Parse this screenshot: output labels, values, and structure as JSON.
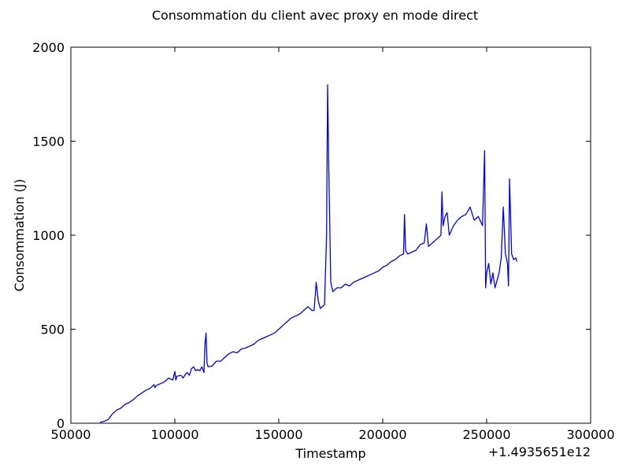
{
  "chart_data": {
    "type": "line",
    "title": "Consommation du client avec proxy en mode direct",
    "xlabel": "Timestamp",
    "ylabel": "Consommation (J)",
    "x_offset_label": "+1.4935651e12",
    "xlim": [
      50000,
      300000
    ],
    "ylim": [
      0,
      2000
    ],
    "x_ticks": [
      50000,
      100000,
      150000,
      200000,
      250000,
      300000
    ],
    "x_tick_labels": [
      "50000",
      "100000",
      "150000",
      "200000",
      "250000",
      "300000"
    ],
    "y_ticks": [
      0,
      500,
      1000,
      1500,
      2000
    ],
    "y_tick_labels": [
      "0",
      "500",
      "1000",
      "1500",
      "2000"
    ],
    "grid": false,
    "line_color": "#0000ff",
    "series": [
      {
        "x": [
          64000,
          66000,
          68000,
          70000,
          72000,
          74000,
          76000,
          78000,
          80000,
          82000,
          84000,
          86000,
          88000,
          90000,
          90500,
          91000,
          93000,
          95000,
          97000,
          99000,
          100000,
          100500,
          101000,
          103000,
          104000,
          105000,
          106000,
          107000,
          108000,
          109000,
          110000,
          111000,
          112000,
          113000,
          114000,
          114500,
          115000,
          115500,
          116000,
          118000,
          120000,
          122000,
          124000,
          126000,
          128000,
          130000,
          132000,
          134000,
          136000,
          138000,
          140000,
          142000,
          144000,
          146000,
          148000,
          150000,
          152000,
          154000,
          156000,
          158000,
          160000,
          162000,
          164000,
          166000,
          167000,
          168000,
          169000,
          170000,
          171000,
          172000,
          173000,
          173500,
          174000,
          175000,
          176000,
          178000,
          180000,
          182000,
          184000,
          186000,
          188000,
          190000,
          192000,
          194000,
          196000,
          198000,
          200000,
          202000,
          204000,
          206000,
          208000,
          210000,
          210500,
          211000,
          212000,
          214000,
          216000,
          218000,
          220000,
          221000,
          222000,
          224000,
          226000,
          228000,
          228500,
          229000,
          230000,
          231000,
          232000,
          234000,
          236000,
          238000,
          240000,
          242000,
          244000,
          246000,
          248000,
          249000,
          249500,
          250000,
          251000,
          252000,
          253000,
          254000,
          256000,
          257000,
          258000,
          259000,
          260000,
          260500,
          261000,
          262000,
          263000,
          264000,
          264500
        ],
        "y": [
          5,
          10,
          20,
          50,
          70,
          80,
          100,
          110,
          125,
          145,
          160,
          175,
          185,
          205,
          190,
          200,
          210,
          220,
          240,
          230,
          275,
          230,
          250,
          255,
          240,
          260,
          270,
          255,
          290,
          300,
          280,
          285,
          280,
          300,
          270,
          420,
          480,
          320,
          300,
          305,
          330,
          330,
          350,
          370,
          380,
          375,
          395,
          400,
          410,
          420,
          440,
          450,
          460,
          470,
          480,
          500,
          520,
          540,
          560,
          570,
          580,
          600,
          620,
          600,
          600,
          750,
          650,
          610,
          620,
          630,
          1000,
          1800,
          1380,
          750,
          700,
          720,
          720,
          740,
          730,
          750,
          760,
          770,
          780,
          790,
          800,
          810,
          830,
          840,
          860,
          870,
          890,
          900,
          1110,
          920,
          900,
          910,
          920,
          950,
          960,
          1060,
          940,
          960,
          980,
          1000,
          1230,
          1050,
          1100,
          1120,
          1000,
          1050,
          1080,
          1100,
          1110,
          1150,
          1080,
          1100,
          1050,
          1450,
          720,
          800,
          850,
          740,
          800,
          720,
          800,
          880,
          1150,
          900,
          850,
          730,
          1300,
          900,
          870,
          880,
          860
        ]
      }
    ]
  }
}
